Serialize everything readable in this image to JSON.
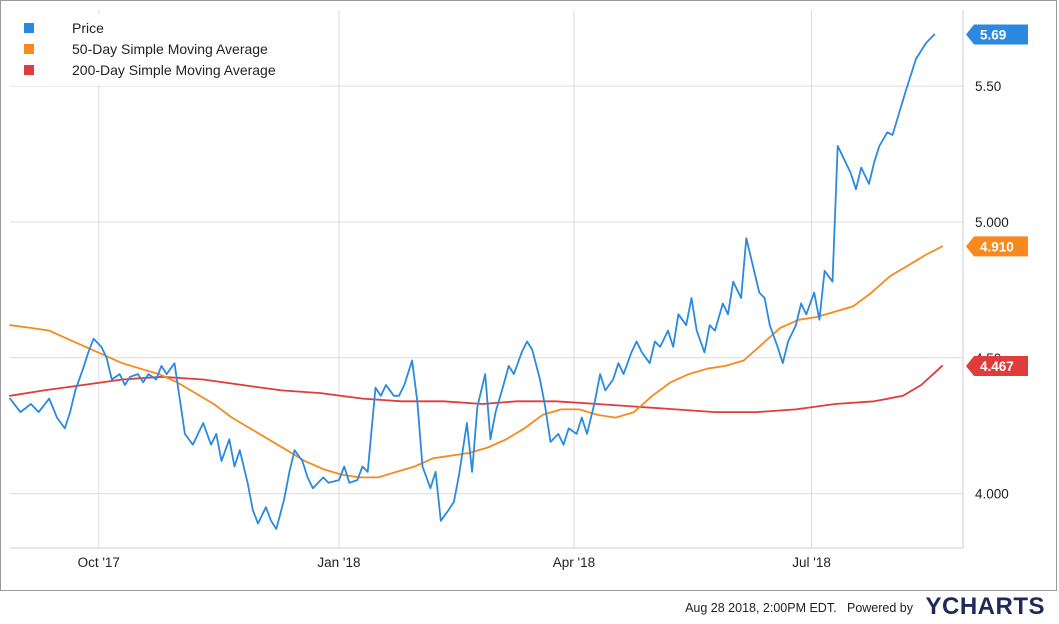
{
  "chart_data": {
    "type": "line",
    "title": "",
    "xlabel": "",
    "ylabel": "",
    "ylim": [
      3.8,
      5.78
    ],
    "xlim": [
      "2017-08-28",
      "2018-08-28"
    ],
    "grid": true,
    "legend_position": "top-left",
    "x_ticks": [
      {
        "date": "2017-10-01",
        "label": "Oct '17"
      },
      {
        "date": "2018-01-01",
        "label": "Jan '18"
      },
      {
        "date": "2018-04-01",
        "label": "Apr '18"
      },
      {
        "date": "2018-07-01",
        "label": "Jul '18"
      }
    ],
    "y_ticks": [
      {
        "value": 4.0,
        "label": "4.000"
      },
      {
        "value": 4.5,
        "label": "4.50"
      },
      {
        "value": 5.0,
        "label": "5.000"
      },
      {
        "value": 5.5,
        "label": "5.50"
      }
    ],
    "series": [
      {
        "name": "Price",
        "color": "#2b8ae0",
        "last_value_label": "5.69",
        "points": [
          [
            "2017-08-28",
            4.35
          ],
          [
            "2017-09-01",
            4.3
          ],
          [
            "2017-09-05",
            4.33
          ],
          [
            "2017-09-08",
            4.3
          ],
          [
            "2017-09-12",
            4.35
          ],
          [
            "2017-09-15",
            4.28
          ],
          [
            "2017-09-18",
            4.24
          ],
          [
            "2017-09-20",
            4.3
          ],
          [
            "2017-09-22",
            4.38
          ],
          [
            "2017-09-25",
            4.46
          ],
          [
            "2017-09-27",
            4.52
          ],
          [
            "2017-09-29",
            4.57
          ],
          [
            "2017-10-02",
            4.54
          ],
          [
            "2017-10-04",
            4.5
          ],
          [
            "2017-10-06",
            4.42
          ],
          [
            "2017-10-09",
            4.44
          ],
          [
            "2017-10-11",
            4.4
          ],
          [
            "2017-10-13",
            4.43
          ],
          [
            "2017-10-16",
            4.44
          ],
          [
            "2017-10-18",
            4.41
          ],
          [
            "2017-10-20",
            4.44
          ],
          [
            "2017-10-23",
            4.42
          ],
          [
            "2017-10-25",
            4.47
          ],
          [
            "2017-10-27",
            4.44
          ],
          [
            "2017-10-30",
            4.48
          ],
          [
            "2017-11-01",
            4.35
          ],
          [
            "2017-11-03",
            4.22
          ],
          [
            "2017-11-06",
            4.18
          ],
          [
            "2017-11-08",
            4.22
          ],
          [
            "2017-11-10",
            4.26
          ],
          [
            "2017-11-13",
            4.18
          ],
          [
            "2017-11-15",
            4.22
          ],
          [
            "2017-11-17",
            4.12
          ],
          [
            "2017-11-20",
            4.2
          ],
          [
            "2017-11-22",
            4.1
          ],
          [
            "2017-11-24",
            4.16
          ],
          [
            "2017-11-27",
            4.04
          ],
          [
            "2017-11-29",
            3.94
          ],
          [
            "2017-12-01",
            3.89
          ],
          [
            "2017-12-04",
            3.95
          ],
          [
            "2017-12-06",
            3.9
          ],
          [
            "2017-12-08",
            3.87
          ],
          [
            "2017-12-11",
            3.98
          ],
          [
            "2017-12-13",
            4.08
          ],
          [
            "2017-12-15",
            4.16
          ],
          [
            "2017-12-18",
            4.12
          ],
          [
            "2017-12-20",
            4.06
          ],
          [
            "2017-12-22",
            4.02
          ],
          [
            "2017-12-26",
            4.06
          ],
          [
            "2017-12-28",
            4.04
          ],
          [
            "2018-01-01",
            4.05
          ],
          [
            "2018-01-03",
            4.1
          ],
          [
            "2018-01-05",
            4.04
          ],
          [
            "2018-01-08",
            4.05
          ],
          [
            "2018-01-10",
            4.1
          ],
          [
            "2018-01-12",
            4.08
          ],
          [
            "2018-01-15",
            4.39
          ],
          [
            "2018-01-17",
            4.36
          ],
          [
            "2018-01-19",
            4.4
          ],
          [
            "2018-01-22",
            4.36
          ],
          [
            "2018-01-24",
            4.36
          ],
          [
            "2018-01-26",
            4.4
          ],
          [
            "2018-01-29",
            4.49
          ],
          [
            "2018-01-31",
            4.34
          ],
          [
            "2018-02-02",
            4.1
          ],
          [
            "2018-02-05",
            4.02
          ],
          [
            "2018-02-07",
            4.08
          ],
          [
            "2018-02-09",
            3.9
          ],
          [
            "2018-02-12",
            3.94
          ],
          [
            "2018-02-14",
            3.97
          ],
          [
            "2018-02-16",
            4.07
          ],
          [
            "2018-02-19",
            4.26
          ],
          [
            "2018-02-21",
            4.08
          ],
          [
            "2018-02-23",
            4.32
          ],
          [
            "2018-02-26",
            4.44
          ],
          [
            "2018-02-28",
            4.2
          ],
          [
            "2018-03-02",
            4.3
          ],
          [
            "2018-03-05",
            4.4
          ],
          [
            "2018-03-07",
            4.47
          ],
          [
            "2018-03-09",
            4.44
          ],
          [
            "2018-03-12",
            4.52
          ],
          [
            "2018-03-14",
            4.56
          ],
          [
            "2018-03-16",
            4.53
          ],
          [
            "2018-03-19",
            4.42
          ],
          [
            "2018-03-21",
            4.32
          ],
          [
            "2018-03-23",
            4.19
          ],
          [
            "2018-03-26",
            4.22
          ],
          [
            "2018-03-28",
            4.18
          ],
          [
            "2018-03-30",
            4.24
          ],
          [
            "2018-04-02",
            4.22
          ],
          [
            "2018-04-04",
            4.28
          ],
          [
            "2018-04-06",
            4.22
          ],
          [
            "2018-04-09",
            4.34
          ],
          [
            "2018-04-11",
            4.44
          ],
          [
            "2018-04-13",
            4.38
          ],
          [
            "2018-04-16",
            4.42
          ],
          [
            "2018-04-18",
            4.48
          ],
          [
            "2018-04-20",
            4.44
          ],
          [
            "2018-04-23",
            4.52
          ],
          [
            "2018-04-25",
            4.56
          ],
          [
            "2018-04-27",
            4.52
          ],
          [
            "2018-04-30",
            4.48
          ],
          [
            "2018-05-02",
            4.56
          ],
          [
            "2018-05-04",
            4.54
          ],
          [
            "2018-05-07",
            4.6
          ],
          [
            "2018-05-09",
            4.54
          ],
          [
            "2018-05-11",
            4.66
          ],
          [
            "2018-05-14",
            4.62
          ],
          [
            "2018-05-16",
            4.72
          ],
          [
            "2018-05-18",
            4.6
          ],
          [
            "2018-05-21",
            4.52
          ],
          [
            "2018-05-23",
            4.62
          ],
          [
            "2018-05-25",
            4.6
          ],
          [
            "2018-05-28",
            4.7
          ],
          [
            "2018-05-30",
            4.66
          ],
          [
            "2018-06-01",
            4.78
          ],
          [
            "2018-06-04",
            4.72
          ],
          [
            "2018-06-06",
            4.94
          ],
          [
            "2018-06-08",
            4.86
          ],
          [
            "2018-06-11",
            4.74
          ],
          [
            "2018-06-13",
            4.72
          ],
          [
            "2018-06-15",
            4.62
          ],
          [
            "2018-06-18",
            4.54
          ],
          [
            "2018-06-20",
            4.48
          ],
          [
            "2018-06-22",
            4.56
          ],
          [
            "2018-06-25",
            4.62
          ],
          [
            "2018-06-27",
            4.7
          ],
          [
            "2018-06-29",
            4.66
          ],
          [
            "2018-07-02",
            4.74
          ],
          [
            "2018-07-04",
            4.64
          ],
          [
            "2018-07-06",
            4.82
          ],
          [
            "2018-07-09",
            4.78
          ],
          [
            "2018-07-11",
            5.28
          ],
          [
            "2018-07-13",
            5.24
          ],
          [
            "2018-07-16",
            5.18
          ],
          [
            "2018-07-18",
            5.12
          ],
          [
            "2018-07-20",
            5.2
          ],
          [
            "2018-07-23",
            5.14
          ],
          [
            "2018-07-25",
            5.22
          ],
          [
            "2018-07-27",
            5.28
          ],
          [
            "2018-07-30",
            5.33
          ],
          [
            "2018-08-01",
            5.32
          ],
          [
            "2018-08-06",
            5.48
          ],
          [
            "2018-08-10",
            5.6
          ],
          [
            "2018-08-14",
            5.66
          ],
          [
            "2018-08-17",
            5.69
          ]
        ]
      },
      {
        "name": "50-Day Simple Moving Average",
        "color": "#f7891e",
        "last_value_label": "4.910",
        "points": [
          [
            "2017-08-28",
            4.62
          ],
          [
            "2017-09-05",
            4.61
          ],
          [
            "2017-09-12",
            4.6
          ],
          [
            "2017-09-19",
            4.57
          ],
          [
            "2017-09-26",
            4.54
          ],
          [
            "2017-10-03",
            4.51
          ],
          [
            "2017-10-10",
            4.48
          ],
          [
            "2017-10-17",
            4.46
          ],
          [
            "2017-10-24",
            4.44
          ],
          [
            "2017-10-31",
            4.41
          ],
          [
            "2017-11-07",
            4.37
          ],
          [
            "2017-11-14",
            4.33
          ],
          [
            "2017-11-21",
            4.28
          ],
          [
            "2017-11-28",
            4.24
          ],
          [
            "2017-12-05",
            4.2
          ],
          [
            "2017-12-12",
            4.16
          ],
          [
            "2017-12-19",
            4.12
          ],
          [
            "2017-12-26",
            4.09
          ],
          [
            "2018-01-02",
            4.07
          ],
          [
            "2018-01-09",
            4.06
          ],
          [
            "2018-01-16",
            4.06
          ],
          [
            "2018-01-23",
            4.08
          ],
          [
            "2018-01-30",
            4.1
          ],
          [
            "2018-02-06",
            4.13
          ],
          [
            "2018-02-13",
            4.14
          ],
          [
            "2018-02-20",
            4.15
          ],
          [
            "2018-02-27",
            4.17
          ],
          [
            "2018-03-06",
            4.2
          ],
          [
            "2018-03-13",
            4.24
          ],
          [
            "2018-03-20",
            4.29
          ],
          [
            "2018-03-27",
            4.31
          ],
          [
            "2018-04-03",
            4.31
          ],
          [
            "2018-04-10",
            4.29
          ],
          [
            "2018-04-17",
            4.28
          ],
          [
            "2018-04-24",
            4.3
          ],
          [
            "2018-05-01",
            4.36
          ],
          [
            "2018-05-08",
            4.41
          ],
          [
            "2018-05-15",
            4.44
          ],
          [
            "2018-05-22",
            4.46
          ],
          [
            "2018-05-29",
            4.47
          ],
          [
            "2018-06-05",
            4.49
          ],
          [
            "2018-06-12",
            4.55
          ],
          [
            "2018-06-19",
            4.61
          ],
          [
            "2018-06-26",
            4.64
          ],
          [
            "2018-07-03",
            4.65
          ],
          [
            "2018-07-10",
            4.67
          ],
          [
            "2018-07-17",
            4.69
          ],
          [
            "2018-07-24",
            4.74
          ],
          [
            "2018-07-31",
            4.8
          ],
          [
            "2018-08-07",
            4.84
          ],
          [
            "2018-08-14",
            4.88
          ],
          [
            "2018-08-20",
            4.91
          ]
        ]
      },
      {
        "name": "200-Day Simple Moving Average",
        "color": "#e03c3c",
        "last_value_label": "4.467",
        "points": [
          [
            "2017-08-28",
            4.36
          ],
          [
            "2017-09-10",
            4.38
          ],
          [
            "2017-09-25",
            4.4
          ],
          [
            "2017-10-10",
            4.42
          ],
          [
            "2017-10-25",
            4.43
          ],
          [
            "2017-11-10",
            4.42
          ],
          [
            "2017-11-25",
            4.4
          ],
          [
            "2017-12-10",
            4.38
          ],
          [
            "2017-12-25",
            4.37
          ],
          [
            "2018-01-10",
            4.35
          ],
          [
            "2018-01-25",
            4.34
          ],
          [
            "2018-02-10",
            4.34
          ],
          [
            "2018-02-25",
            4.33
          ],
          [
            "2018-03-10",
            4.34
          ],
          [
            "2018-03-25",
            4.34
          ],
          [
            "2018-04-10",
            4.33
          ],
          [
            "2018-04-25",
            4.32
          ],
          [
            "2018-05-10",
            4.31
          ],
          [
            "2018-05-25",
            4.3
          ],
          [
            "2018-06-10",
            4.3
          ],
          [
            "2018-06-25",
            4.31
          ],
          [
            "2018-07-10",
            4.33
          ],
          [
            "2018-07-25",
            4.34
          ],
          [
            "2018-08-05",
            4.36
          ],
          [
            "2018-08-12",
            4.4
          ],
          [
            "2018-08-20",
            4.47
          ]
        ]
      }
    ]
  },
  "footer": {
    "timestamp": "Aug 28 2018, 2:00PM EDT.",
    "powered_by": "Powered by",
    "brand": "YCHARTS"
  }
}
